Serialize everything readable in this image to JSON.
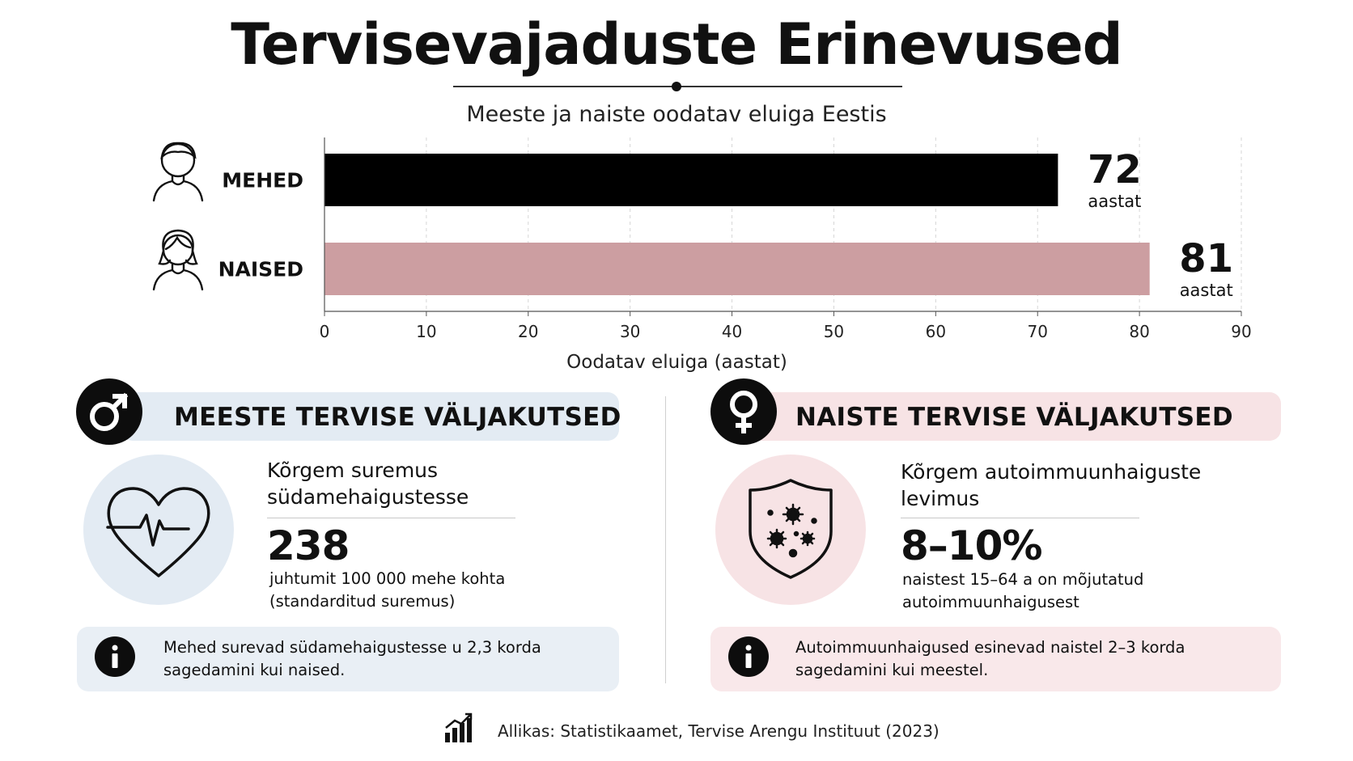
{
  "header": {
    "title": "Tervisevajaduste Erinevused",
    "subtitle": "Meeste ja naiste oodatav eluiga Eestis"
  },
  "colors": {
    "men_bar": "#000000",
    "women_bar": "#cc9ea1",
    "men_panel": "#e3ebf3",
    "women_panel": "#f7e3e5"
  },
  "chart_data": {
    "type": "bar",
    "orientation": "horizontal",
    "categories": [
      "MEHED",
      "NAISED"
    ],
    "values": [
      72,
      81
    ],
    "value_labels": [
      "72",
      "81"
    ],
    "value_unit": "aastat",
    "xlabel": "Oodatav eluiga (aastat)",
    "xlim": [
      0,
      90
    ],
    "xticks": [
      0,
      10,
      20,
      30,
      40,
      50,
      60,
      70,
      80,
      90
    ],
    "grid": "vertical-dashed",
    "icons": [
      "male-person-icon",
      "female-person-icon"
    ]
  },
  "men": {
    "banner": "MEESTE TERVISE VÄLJAKUTSED",
    "symbol_icon": "male-symbol-icon",
    "stat_icon": "heart-pulse-icon",
    "stat_title_1": "Kõrgem suremus",
    "stat_title_2": "südamehaigustesse",
    "stat_value": "238",
    "stat_desc_1": "juhtumit 100 000 mehe kohta",
    "stat_desc_2": "(standarditud suremus)",
    "info_1": "Mehed surevad südamehaigustesse u 2,3 korda",
    "info_2": "sagedamini kui naised."
  },
  "women": {
    "banner": "NAISTE TERVISE VÄLJAKUTSED",
    "symbol_icon": "female-symbol-icon",
    "stat_icon": "shield-virus-icon",
    "stat_title_1": "Kõrgem autoimmuunhaiguste",
    "stat_title_2": "levimus",
    "stat_value": "8–10%",
    "stat_desc_1": "naistest 15–64 a on mõjutatud",
    "stat_desc_2": "autoimmuunhaigusest",
    "info_1": "Autoimmuunhaigused esinevad naistel 2–3 korda",
    "info_2": "sagedamini kui meestel."
  },
  "footer": {
    "source": "Allikas: Statistikaamet, Tervise Arengu Instituut (2023)",
    "icon": "bar-chart-trend-icon"
  }
}
